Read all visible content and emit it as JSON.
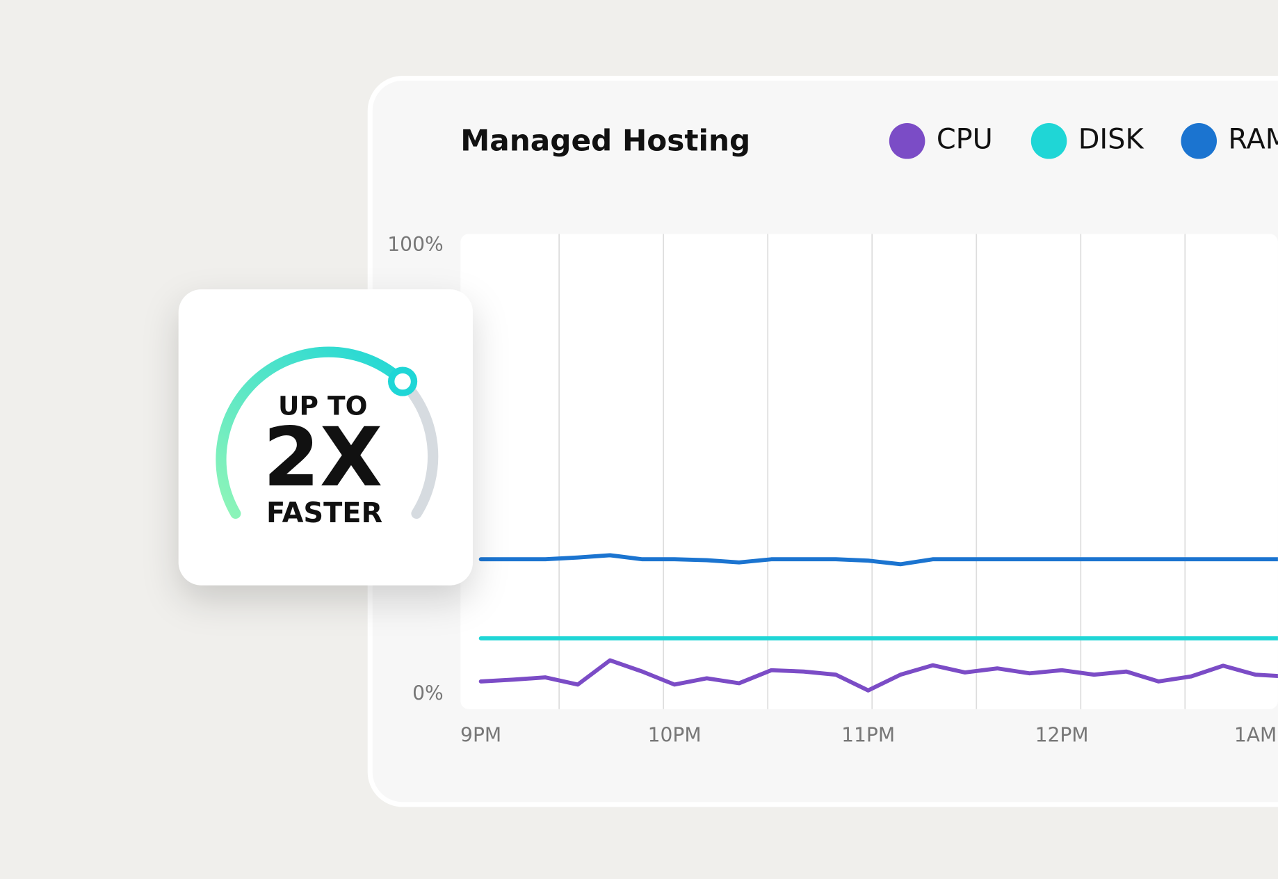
{
  "chart_data": {
    "type": "line",
    "title": "Managed Hosting",
    "categories": [
      "9PM",
      null,
      null,
      null,
      null,
      null,
      "10PM",
      null,
      null,
      null,
      null,
      null,
      "11PM",
      null,
      null,
      null,
      null,
      null,
      "12PM",
      null,
      null,
      null,
      null,
      null,
      "1AM",
      null
    ],
    "series": [
      {
        "name": "CPU",
        "color": "#7b4cc6",
        "values": [
          2.9,
          3.3,
          3.8,
          2.2,
          7.6,
          5.1,
          2.2,
          3.6,
          2.5,
          5.4,
          5.1,
          4.4,
          0.9,
          4.4,
          6.5,
          4.9,
          5.8,
          4.7,
          5.4,
          4.4,
          5.1,
          2.9,
          4.0,
          6.4,
          4.4,
          4.0
        ]
      },
      {
        "name": "DISK",
        "color": "#1fd6d6",
        "values": [
          12.5,
          12.5,
          12.5,
          12.5,
          12.5,
          12.5,
          12.5,
          12.5,
          12.5,
          12.5,
          12.5,
          12.5,
          12.5,
          12.5,
          12.5,
          12.5,
          12.5,
          12.5,
          12.5,
          12.5,
          12.5,
          12.5,
          12.5,
          12.5,
          12.5,
          12.5
        ]
      },
      {
        "name": "RAM",
        "color": "#1b74d0",
        "values": [
          30.1,
          30.1,
          30.1,
          30.5,
          31.0,
          30.1,
          30.1,
          29.9,
          29.4,
          30.1,
          30.1,
          30.1,
          29.8,
          29.0,
          30.1,
          30.1,
          30.1,
          30.1,
          30.1,
          30.1,
          30.1,
          30.1,
          30.1,
          30.1,
          30.1,
          30.1
        ]
      }
    ],
    "ylim": [
      0,
      100
    ],
    "yticks": [
      {
        "value": 0,
        "label": "0%"
      },
      {
        "value": 100,
        "label": "100%"
      }
    ],
    "grid": false
  },
  "badge": {
    "line1": "UP TO",
    "line2": "2X",
    "line3": "FASTER"
  }
}
